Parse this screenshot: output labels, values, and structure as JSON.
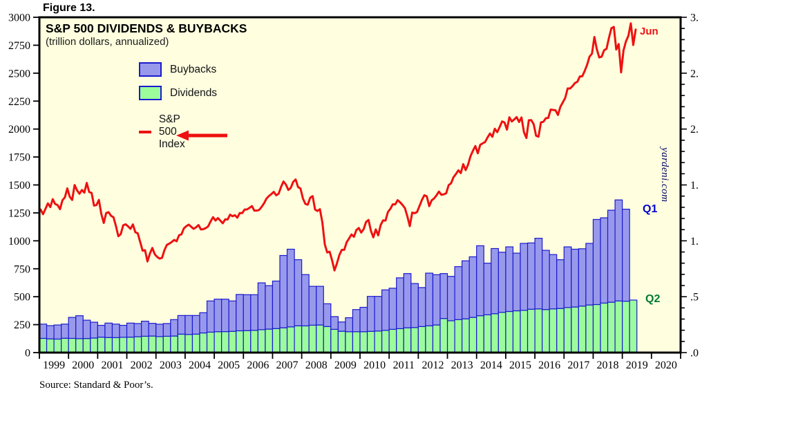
{
  "figure_label": "Figure 13.",
  "chart": {
    "title": "S&P 500 DIVIDENDS & BUYBACKS",
    "subtitle": "(trillion dollars, annualized)"
  },
  "legend": {
    "buybacks": "Buybacks",
    "dividends": "Dividends",
    "index": "S&P 500 Index"
  },
  "annotations": {
    "line_end": "Jun",
    "buybacks_last": "Q1",
    "dividends_last": "Q2",
    "watermark": "yardeni.com"
  },
  "source": "Source: Standard & Poor’s.",
  "colors": {
    "plot_bg": "#ffffe0",
    "bar_border": "#1a1ace",
    "buybacks_fill": "#9999ec",
    "dividends_fill": "#9cfc9c",
    "line_red": "#ee1111",
    "q1_label": "#0000cd",
    "q2_label": "#007a33",
    "jun_label": "#ee1111",
    "watermark_color": "#000066",
    "axis_black": "#000000"
  },
  "chart_data": {
    "type": "combo",
    "bar_mode": "stacked",
    "left_axis": {
      "used_by": "S&P 500 Index line",
      "min": 0,
      "max": 3000,
      "tick_step": 250,
      "tick_labels": [
        "0",
        "250",
        "500",
        "750",
        "1000",
        "1250",
        "1500",
        "1750",
        "2000",
        "2250",
        "2500",
        "2750",
        "3000"
      ]
    },
    "right_axis": {
      "used_by": "bars (trillion dollars, annualized)",
      "min": 0,
      "max": 3,
      "tick_step": 0.5,
      "minor_step": 0.1,
      "tick_labels_top_to_bottom": [
        "3.",
        "2.",
        "2.",
        "1.",
        "1.",
        ".5",
        ".0"
      ]
    },
    "x_axis": {
      "year_labels": [
        "1999",
        "2000",
        "2001",
        "2002",
        "2003",
        "2004",
        "2005",
        "2006",
        "2007",
        "2008",
        "2009",
        "2010",
        "2011",
        "2012",
        "2013",
        "2014",
        "2015",
        "2016",
        "2017",
        "2018",
        "2019",
        "2020"
      ],
      "range_years": [
        1999,
        2021
      ]
    },
    "series": [
      {
        "name": "Dividends",
        "role": "bar-bottom",
        "unit": "$B annualized",
        "start": "1999Q1",
        "freq": "quarterly",
        "values": [
          127,
          123,
          121,
          128,
          127,
          125,
          126,
          130,
          138,
          135,
          134,
          137,
          138,
          142,
          146,
          148,
          143,
          146,
          148,
          165,
          162,
          165,
          176,
          183,
          187,
          188,
          190,
          195,
          197,
          199,
          205,
          210,
          215,
          222,
          230,
          240,
          239,
          245,
          247,
          233,
          208,
          191,
          187,
          187,
          187,
          190,
          193,
          199,
          208,
          214,
          222,
          224,
          233,
          240,
          247,
          305,
          285,
          295,
          302,
          315,
          330,
          338,
          348,
          360,
          368,
          374,
          378,
          388,
          391,
          385,
          391,
          395,
          403,
          408,
          416,
          426,
          430,
          443,
          451,
          462,
          460,
          470
        ]
      },
      {
        "name": "Buybacks",
        "role": "bar-top",
        "unit": "$B annualized",
        "start": "1999Q1",
        "freq": "quarterly",
        "values": [
          128,
          118,
          126,
          127,
          188,
          205,
          164,
          142,
          106,
          129,
          121,
          107,
          126,
          118,
          135,
          114,
          111,
          114,
          147,
          167,
          170,
          167,
          181,
          279,
          291,
          290,
          272,
          325,
          321,
          319,
          419,
          389,
          425,
          647,
          695,
          591,
          459,
          348,
          346,
          204,
          114,
          83,
          125,
          198,
          218,
          313,
          310,
          362,
          368,
          455,
          485,
          394,
          349,
          471,
          450,
          402,
          397,
          474,
          519,
          542,
          626,
          462,
          583,
          538,
          578,
          516,
          599,
          593,
          632,
          530,
          486,
          436,
          543,
          517,
          513,
          551,
          761,
          763,
          823,
          904,
          823
        ]
      },
      {
        "name": "S&P 500 Index",
        "role": "line",
        "axis": "left",
        "start": "1999-01",
        "freq": "monthly",
        "end_label": "Jun",
        "values": [
          1280,
          1238,
          1286,
          1335,
          1302,
          1373,
          1329,
          1320,
          1283,
          1363,
          1389,
          1469,
          1394,
          1366,
          1499,
          1452,
          1421,
          1455,
          1431,
          1518,
          1437,
          1429,
          1315,
          1320,
          1366,
          1240,
          1160,
          1249,
          1256,
          1224,
          1211,
          1134,
          1041,
          1060,
          1139,
          1148,
          1130,
          1107,
          1147,
          1077,
          1067,
          990,
          912,
          916,
          815,
          886,
          936,
          880,
          856,
          841,
          848,
          917,
          964,
          975,
          990,
          1008,
          996,
          1050,
          1058,
          1112,
          1131,
          1145,
          1126,
          1107,
          1121,
          1141,
          1102,
          1104,
          1114,
          1130,
          1174,
          1212,
          1181,
          1204,
          1181,
          1157,
          1192,
          1191,
          1234,
          1220,
          1229,
          1207,
          1249,
          1248,
          1280,
          1281,
          1295,
          1311,
          1270,
          1270,
          1277,
          1304,
          1336,
          1378,
          1401,
          1418,
          1438,
          1407,
          1421,
          1482,
          1531,
          1503,
          1455,
          1474,
          1527,
          1549,
          1481,
          1468,
          1379,
          1331,
          1323,
          1386,
          1400,
          1280,
          1267,
          1283,
          1165,
          969,
          896,
          903,
          826,
          735,
          798,
          873,
          919,
          919,
          987,
          1021,
          1057,
          1036,
          1096,
          1115,
          1074,
          1104,
          1169,
          1187,
          1089,
          1031,
          1102,
          1049,
          1141,
          1183,
          1181,
          1258,
          1286,
          1327,
          1326,
          1364,
          1345,
          1321,
          1292,
          1219,
          1131,
          1253,
          1247,
          1258,
          1312,
          1366,
          1408,
          1398,
          1310,
          1362,
          1379,
          1407,
          1441,
          1412,
          1416,
          1426,
          1498,
          1515,
          1569,
          1598,
          1631,
          1606,
          1686,
          1633,
          1682,
          1757,
          1806,
          1848,
          1783,
          1859,
          1872,
          1884,
          1924,
          1960,
          1931,
          2003,
          1972,
          2018,
          2068,
          2059,
          1995,
          2105,
          2068,
          2086,
          2107,
          2063,
          2104,
          1972,
          1920,
          2079,
          2080,
          2044,
          1940,
          1932,
          2060,
          2065,
          2097,
          2099,
          2174,
          2171,
          2168,
          2126,
          2199,
          2239,
          2279,
          2364,
          2363,
          2384,
          2412,
          2423,
          2470,
          2472,
          2519,
          2575,
          2648,
          2674,
          2824,
          2714,
          2641,
          2648,
          2705,
          2718,
          2816,
          2902,
          2914,
          2712,
          2760,
          2507,
          2704,
          2785,
          2834,
          2946,
          2752,
          2890
        ]
      }
    ]
  }
}
